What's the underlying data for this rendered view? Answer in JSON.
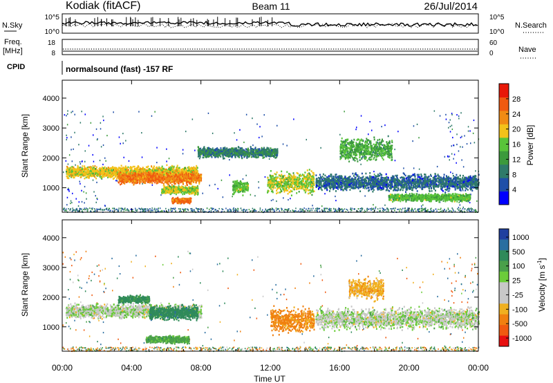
{
  "header": {
    "station": "Kodiak (fitACF)",
    "beam": "Beam 11",
    "date": "26/Jul/2014"
  },
  "top_panels": {
    "nsky_label": "N.Sky",
    "nsky_ticks": [
      "10^5",
      "10^0"
    ],
    "nsearch_label": "N.Search",
    "nsearch_ticks": [
      "10^5",
      "10^0"
    ],
    "freq_label": "Freq.",
    "freq_unit": "[MHz]",
    "freq_ticks": [
      "18",
      "8"
    ],
    "nave_label": "Nave",
    "nave_ticks": [
      "60",
      "0"
    ],
    "cpid_label": "CPID",
    "cpid_text": "normalsound (fast) -157 RF"
  },
  "colors": {
    "power_scale": [
      "#0000ff",
      "#1f4fa8",
      "#2f7a6a",
      "#3c9a3c",
      "#59c43a",
      "#f3c21a",
      "#f08b14",
      "#f05a10",
      "#e81808"
    ],
    "velocity_scale": [
      "#1f3f9f",
      "#2a6ea0",
      "#2f8a5a",
      "#4aa04a",
      "#6ccc3a",
      "#c8c8c8",
      "#c8c8c8",
      "#f0b020",
      "#f08010",
      "#f05a10",
      "#e81010"
    ],
    "gray_scatter": "#c8c8c8"
  },
  "chart_data": [
    {
      "type": "heatmap",
      "name": "power",
      "title": "",
      "xlabel": "Time UT",
      "ylabel": "Slant Range [km]",
      "xlim": [
        0,
        24
      ],
      "ylim": [
        180,
        4600
      ],
      "x_tick_labels": [
        "00:00",
        "04:00",
        "08:00",
        "12:00",
        "16:00",
        "20:00",
        "00:00"
      ],
      "y_ticks": [
        1000,
        2000,
        3000,
        4000
      ],
      "colorbar": {
        "label": "Power [dB]",
        "range": [
          0,
          32
        ],
        "ticks": [
          4,
          8,
          12,
          16,
          20,
          24,
          28
        ]
      },
      "features": [
        {
          "t_start": 0.2,
          "t_end": 7.8,
          "range_center": 1550,
          "range_width": 260,
          "power": 22
        },
        {
          "t_start": 3.2,
          "t_end": 8.0,
          "range_center": 1350,
          "range_width": 250,
          "power": 27
        },
        {
          "t_start": 5.7,
          "t_end": 7.8,
          "range_center": 950,
          "range_width": 180,
          "power": 20
        },
        {
          "t_start": 6.3,
          "t_end": 7.4,
          "range_center": 600,
          "range_width": 120,
          "power": 28
        },
        {
          "t_start": 7.8,
          "t_end": 12.4,
          "range_center": 2200,
          "range_width": 220,
          "power": 12
        },
        {
          "t_start": 9.8,
          "t_end": 10.7,
          "range_center": 1050,
          "range_width": 300,
          "power": 18
        },
        {
          "t_start": 11.8,
          "t_end": 14.5,
          "range_center": 1200,
          "range_width": 500,
          "power": 20
        },
        {
          "t_start": 14.6,
          "t_end": 24.0,
          "range_center": 1200,
          "range_width": 350,
          "power": 10
        },
        {
          "t_start": 16.0,
          "t_end": 19.0,
          "range_center": 2300,
          "range_width": 500,
          "power": 16
        },
        {
          "t_start": 18.8,
          "t_end": 23.5,
          "range_center": 700,
          "range_width": 160,
          "power": 18
        }
      ]
    },
    {
      "type": "heatmap",
      "name": "velocity",
      "title": "",
      "xlabel": "Time UT",
      "ylabel": "Slant Range [km]",
      "xlim": [
        0,
        24
      ],
      "ylim": [
        180,
        4600
      ],
      "x_tick_labels": [
        "00:00",
        "04:00",
        "08:00",
        "12:00",
        "16:00",
        "20:00",
        "00:00"
      ],
      "y_ticks": [
        1000,
        2000,
        3000,
        4000
      ],
      "colorbar": {
        "label": "Velocity [m s-1]",
        "ticks": [
          "1000",
          "500",
          "100",
          "25",
          "-25",
          "-100",
          "-500",
          "-1000"
        ]
      },
      "features": [
        {
          "t_start": 0.2,
          "t_end": 8.0,
          "range_center": 1550,
          "range_width": 300,
          "velocity": 0
        },
        {
          "t_start": 3.2,
          "t_end": 5.0,
          "range_center": 1950,
          "range_width": 160,
          "velocity": 300
        },
        {
          "t_start": 5.0,
          "t_end": 7.8,
          "range_center": 1500,
          "range_width": 300,
          "velocity": 400
        },
        {
          "t_start": 4.8,
          "t_end": 7.3,
          "range_center": 600,
          "range_width": 160,
          "velocity": 150
        },
        {
          "t_start": 12.0,
          "t_end": 14.5,
          "range_center": 1250,
          "range_width": 550,
          "velocity": -300
        },
        {
          "t_start": 16.5,
          "t_end": 18.5,
          "range_center": 2300,
          "range_width": 450,
          "velocity": -200
        },
        {
          "t_start": 14.6,
          "t_end": 24.0,
          "range_center": 1300,
          "range_width": 450,
          "velocity": 0
        }
      ]
    }
  ]
}
